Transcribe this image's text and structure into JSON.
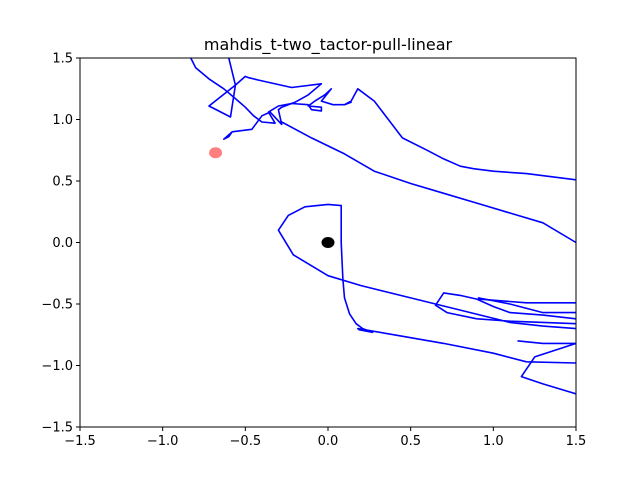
{
  "chart_data": {
    "type": "line",
    "title": "mahdis_t-two_tactor-pull-linear",
    "xlabel": "",
    "ylabel": "",
    "xlim": [
      -1.5,
      1.5
    ],
    "ylim": [
      -1.5,
      1.5
    ],
    "grid": false,
    "x_ticks": [
      -1.5,
      -1.0,
      -0.5,
      0.0,
      0.5,
      1.0,
      1.5
    ],
    "y_ticks": [
      -1.5,
      -1.0,
      -0.5,
      0.0,
      0.5,
      1.0,
      1.5
    ],
    "x_tick_labels": [
      "−1.5",
      "−1.0",
      "−0.5",
      "0.0",
      "0.5",
      "1.0",
      "1.5"
    ],
    "y_tick_labels": [
      "−1.5",
      "−1.0",
      "−0.5",
      "0.0",
      "0.5",
      "1.0",
      "1.5"
    ],
    "series": [
      {
        "color": "#0000ff",
        "points": [
          [
            -0.83,
            1.5
          ],
          [
            -0.8,
            1.42
          ],
          [
            -0.72,
            1.33
          ],
          [
            -0.63,
            1.25
          ],
          [
            -0.56,
            1.17
          ],
          [
            -0.5,
            1.1
          ],
          [
            -0.45,
            1.03
          ],
          [
            -0.4,
            0.98
          ],
          [
            -0.32,
            0.97
          ],
          [
            -0.36,
            1.06
          ],
          [
            -0.3,
            1.11
          ],
          [
            -0.22,
            1.13
          ],
          [
            -0.12,
            1.12
          ],
          [
            -0.1,
            1.08
          ],
          [
            -0.04,
            1.07
          ],
          [
            -0.04,
            1.1
          ],
          [
            -0.12,
            1.11
          ],
          [
            -0.08,
            1.15
          ],
          [
            -0.02,
            1.2
          ],
          [
            0.02,
            1.25
          ],
          [
            -0.04,
            1.15
          ],
          [
            0.03,
            1.12
          ],
          [
            0.1,
            1.12
          ],
          [
            0.14,
            1.14
          ],
          [
            0.1,
            1.12
          ],
          [
            0.14,
            1.15
          ],
          [
            0.18,
            1.25
          ],
          [
            0.28,
            1.15
          ],
          [
            0.45,
            0.85
          ],
          [
            0.6,
            0.75
          ],
          [
            0.7,
            0.68
          ],
          [
            0.8,
            0.62
          ],
          [
            0.88,
            0.6
          ],
          [
            1.0,
            0.58
          ],
          [
            1.2,
            0.56
          ],
          [
            1.5,
            0.51
          ]
        ]
      },
      {
        "color": "#0000ff",
        "points": [
          [
            -0.6,
            1.5
          ],
          [
            -0.56,
            1.28
          ],
          [
            -0.59,
            1.02
          ],
          [
            -0.72,
            1.11
          ],
          [
            -0.56,
            1.28
          ],
          [
            -0.5,
            1.35
          ],
          [
            -0.48,
            1.34
          ],
          [
            -0.42,
            1.32
          ],
          [
            -0.22,
            1.26
          ],
          [
            -0.04,
            1.29
          ],
          [
            -0.12,
            1.2
          ],
          [
            -0.2,
            1.14
          ],
          [
            -0.28,
            1.1
          ],
          [
            -0.3,
            1.08
          ],
          [
            -0.28,
            0.96
          ],
          [
            -0.35,
            1.06
          ],
          [
            -0.4,
            1.03
          ],
          [
            -0.46,
            0.92
          ],
          [
            -0.52,
            0.91
          ],
          [
            -0.58,
            0.9
          ],
          [
            -0.6,
            0.86
          ],
          [
            -0.63,
            0.84
          ],
          [
            -0.58,
            0.9
          ]
        ]
      },
      {
        "color": "#0000ff",
        "points": [
          [
            -0.28,
            0.98
          ],
          [
            -0.1,
            0.85
          ],
          [
            0.1,
            0.72
          ],
          [
            0.28,
            0.58
          ],
          [
            0.5,
            0.48
          ],
          [
            0.7,
            0.4
          ],
          [
            0.9,
            0.32
          ],
          [
            1.1,
            0.24
          ],
          [
            1.3,
            0.16
          ],
          [
            1.5,
            0.0
          ]
        ]
      },
      {
        "color": "#0000ff",
        "points": [
          [
            0.08,
            0.3
          ],
          [
            0.0,
            0.31
          ],
          [
            -0.14,
            0.29
          ],
          [
            -0.24,
            0.22
          ],
          [
            -0.3,
            0.1
          ],
          [
            -0.21,
            -0.1
          ],
          [
            0.0,
            -0.27
          ],
          [
            0.2,
            -0.35
          ],
          [
            0.5,
            -0.45
          ],
          [
            0.8,
            -0.55
          ],
          [
            1.1,
            -0.65
          ],
          [
            1.3,
            -0.68
          ],
          [
            1.5,
            -0.7
          ]
        ]
      },
      {
        "color": "#0000ff",
        "points": [
          [
            0.08,
            0.3
          ],
          [
            0.08,
            0.0
          ],
          [
            0.09,
            -0.3
          ],
          [
            0.1,
            -0.45
          ],
          [
            0.13,
            -0.58
          ],
          [
            0.17,
            -0.66
          ],
          [
            0.21,
            -0.7
          ],
          [
            0.27,
            -0.73
          ],
          [
            0.19,
            -0.71
          ],
          [
            0.18,
            -0.7
          ],
          [
            0.4,
            -0.75
          ],
          [
            0.7,
            -0.82
          ],
          [
            1.0,
            -0.9
          ],
          [
            1.2,
            -0.97
          ],
          [
            1.5,
            -0.98
          ]
        ]
      },
      {
        "color": "#0000ff",
        "points": [
          [
            1.5,
            -0.62
          ],
          [
            1.3,
            -0.59
          ],
          [
            1.1,
            -0.57
          ],
          [
            1.0,
            -0.52
          ],
          [
            0.9,
            -0.46
          ],
          [
            0.8,
            -0.43
          ],
          [
            0.7,
            -0.41
          ],
          [
            0.67,
            -0.47
          ],
          [
            0.65,
            -0.51
          ],
          [
            0.72,
            -0.57
          ],
          [
            0.9,
            -0.62
          ],
          [
            1.1,
            -0.64
          ],
          [
            1.5,
            -0.66
          ]
        ]
      },
      {
        "color": "#0000ff",
        "points": [
          [
            0.91,
            -0.45
          ],
          [
            1.1,
            -0.5
          ],
          [
            1.3,
            -0.57
          ],
          [
            1.5,
            -0.57
          ]
        ]
      },
      {
        "color": "#0000ff",
        "points": [
          [
            1.15,
            -0.8
          ],
          [
            1.3,
            -0.82
          ],
          [
            1.5,
            -0.82
          ],
          [
            1.25,
            -0.93
          ],
          [
            1.17,
            -1.09
          ],
          [
            1.3,
            -1.15
          ],
          [
            1.5,
            -1.23
          ]
        ]
      },
      {
        "color": "#0000ff",
        "points": [
          [
            1.5,
            -0.49
          ],
          [
            1.2,
            -0.49
          ],
          [
            0.91,
            -0.46
          ]
        ]
      }
    ],
    "markers": [
      {
        "x": 0.0,
        "y": 0.0,
        "color": "#000000",
        "alpha": 1.0
      },
      {
        "x": -0.68,
        "y": 0.73,
        "color": "#ff0000",
        "alpha": 0.5
      }
    ]
  }
}
